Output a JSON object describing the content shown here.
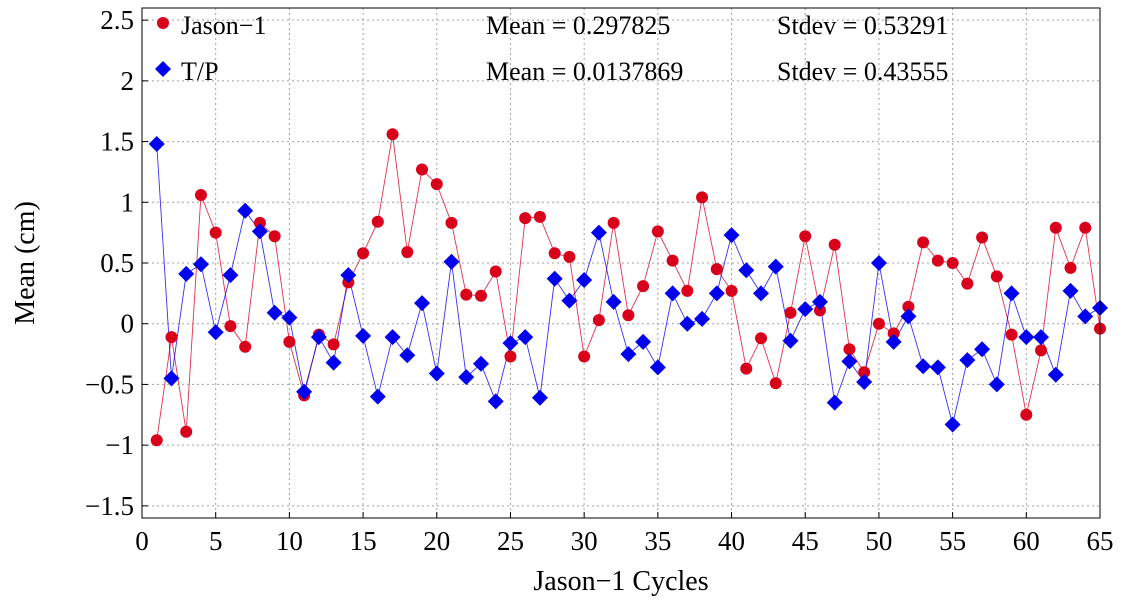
{
  "chart_data": {
    "type": "scatter",
    "xlabel": "Jason−1 Cycles",
    "ylabel": "Mean (cm)",
    "xlim": [
      0,
      65
    ],
    "ylim": [
      -1.6,
      2.6
    ],
    "xticks": [
      0,
      5,
      10,
      15,
      20,
      25,
      30,
      35,
      40,
      45,
      50,
      55,
      60,
      65
    ],
    "yticks": [
      -1.5,
      -1,
      -0.5,
      0,
      0.5,
      1,
      1.5,
      2,
      2.5
    ],
    "xtick_labels": [
      "0",
      "5",
      "10",
      "15",
      "20",
      "25",
      "30",
      "35",
      "40",
      "45",
      "50",
      "55",
      "60",
      "65"
    ],
    "ytick_labels": [
      "−1.5",
      "−1",
      "−0.5",
      "0",
      "0.5",
      "1",
      "1.5",
      "2",
      "2.5"
    ],
    "grid": true,
    "legend_position": "top-left",
    "x": [
      1,
      2,
      3,
      4,
      5,
      6,
      7,
      8,
      9,
      10,
      11,
      12,
      13,
      14,
      15,
      16,
      17,
      18,
      19,
      20,
      21,
      22,
      23,
      24,
      25,
      26,
      27,
      28,
      29,
      30,
      31,
      32,
      33,
      34,
      35,
      36,
      37,
      38,
      39,
      40,
      41,
      42,
      43,
      44,
      45,
      46,
      47,
      48,
      49,
      50,
      51,
      52,
      53,
      54,
      55,
      56,
      57,
      58,
      59,
      60,
      61,
      62,
      63,
      64,
      65
    ],
    "series": [
      {
        "name": "Jason−1",
        "marker": "circle",
        "color": "#d9001b",
        "stats_text": "Mean = 0.297825",
        "stdev_text": "Stdev = 0.53291",
        "values": [
          -0.96,
          -0.11,
          -0.89,
          1.06,
          0.75,
          -0.02,
          -0.19,
          0.83,
          0.72,
          -0.15,
          -0.59,
          -0.09,
          -0.17,
          0.34,
          0.58,
          0.84,
          1.56,
          0.59,
          1.27,
          1.15,
          0.83,
          0.24,
          0.23,
          0.43,
          -0.27,
          0.87,
          0.88,
          0.58,
          0.55,
          -0.27,
          0.03,
          0.83,
          0.07,
          0.31,
          0.76,
          0.52,
          0.27,
          1.04,
          0.45,
          0.27,
          -0.37,
          -0.12,
          -0.49,
          0.09,
          0.72,
          0.11,
          0.65,
          -0.21,
          -0.4,
          0.0,
          -0.08,
          0.14,
          0.67,
          0.52,
          0.5,
          0.33,
          0.71,
          0.39,
          -0.09,
          -0.75,
          -0.22,
          0.79,
          0.46,
          0.79,
          -0.04
        ]
      },
      {
        "name": "T/P",
        "marker": "diamond",
        "color": "#0000ee",
        "stats_text": "Mean = 0.0137869",
        "stdev_text": "Stdev = 0.43555",
        "values": [
          1.48,
          -0.45,
          0.41,
          0.49,
          -0.07,
          0.4,
          0.93,
          0.76,
          0.09,
          0.05,
          -0.56,
          -0.11,
          -0.32,
          0.4,
          -0.1,
          -0.6,
          -0.11,
          -0.26,
          0.17,
          -0.41,
          0.51,
          -0.44,
          -0.33,
          -0.64,
          -0.16,
          -0.11,
          -0.61,
          0.37,
          0.19,
          0.36,
          0.75,
          0.18,
          -0.25,
          -0.15,
          -0.36,
          0.25,
          0.0,
          0.04,
          0.25,
          0.73,
          0.44,
          0.25,
          0.47,
          -0.14,
          0.12,
          0.18,
          -0.65,
          -0.31,
          -0.48,
          0.5,
          -0.15,
          0.06,
          -0.35,
          -0.36,
          -0.83,
          -0.3,
          -0.21,
          -0.5,
          0.25,
          -0.11,
          -0.11,
          -0.42,
          0.27,
          0.06,
          0.13
        ]
      }
    ]
  }
}
